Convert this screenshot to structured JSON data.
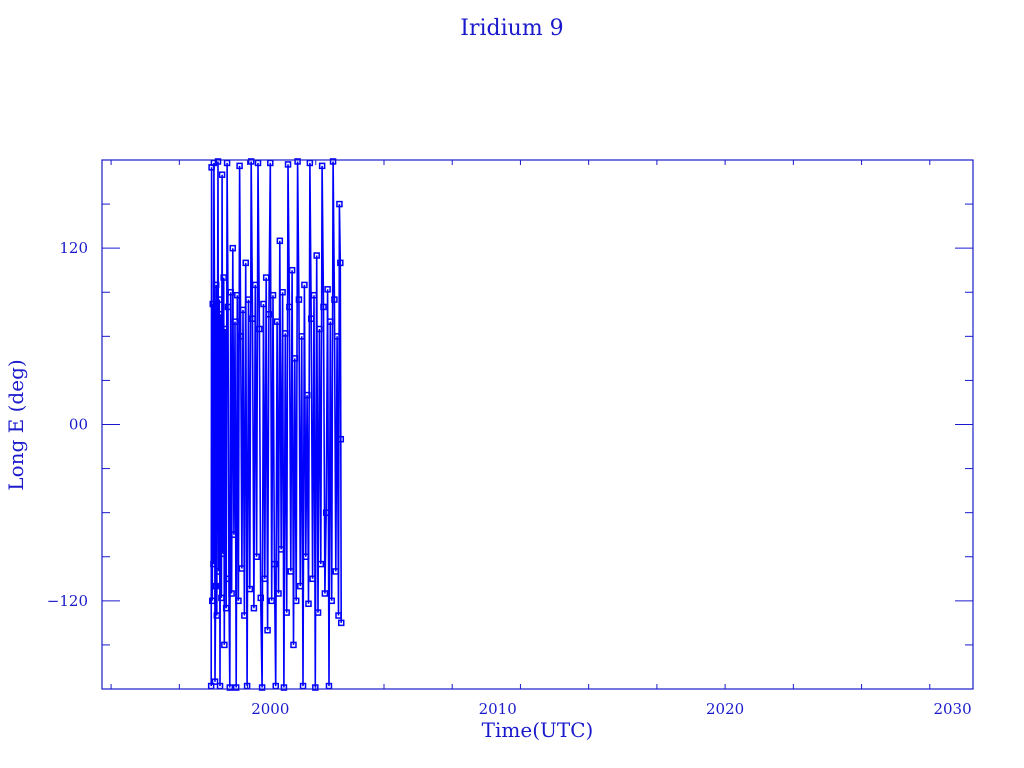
{
  "chart_data": {
    "type": "line",
    "title": "Iridium 9",
    "xlabel": "Time(UTC)",
    "ylabel": "Long E (deg)",
    "xlim": [
      1992.6,
      2030.9
    ],
    "ylim": [
      -180,
      180
    ],
    "xticks": [
      2000,
      2010,
      2020,
      2030
    ],
    "xtick_labels": [
      "2000",
      "2010",
      "2020",
      "2030"
    ],
    "yticks": [
      120,
      0,
      -120
    ],
    "ytick_labels": [
      "120",
      "00",
      "-120"
    ],
    "grid": false,
    "markers": "square",
    "color": "#0000ff",
    "series": [
      {
        "points": [
          [
            1997.4,
            -178
          ],
          [
            1997.42,
            175
          ],
          [
            1997.45,
            -120
          ],
          [
            1997.47,
            82
          ],
          [
            1997.5,
            -95
          ],
          [
            1997.52,
            178
          ],
          [
            1997.55,
            70
          ],
          [
            1997.57,
            -175
          ],
          [
            1997.6,
            -110
          ],
          [
            1997.62,
            95
          ],
          [
            1997.65,
            -130
          ],
          [
            1997.68,
            60
          ],
          [
            1997.7,
            179
          ],
          [
            1997.73,
            -100
          ],
          [
            1997.76,
            85
          ],
          [
            1997.79,
            -178
          ],
          [
            1997.82,
            75
          ],
          [
            1997.85,
            -118
          ],
          [
            1997.88,
            170
          ],
          [
            1997.91,
            -88
          ],
          [
            1997.95,
            100
          ],
          [
            1997.98,
            -150
          ],
          [
            1998.02,
            65
          ],
          [
            1998.06,
            -125
          ],
          [
            1998.1,
            178
          ],
          [
            1998.14,
            80
          ],
          [
            1998.18,
            -105
          ],
          [
            1998.22,
            -179
          ],
          [
            1998.26,
            90
          ],
          [
            1998.3,
            -115
          ],
          [
            1998.35,
            120
          ],
          [
            1998.4,
            -75
          ],
          [
            1998.45,
            70
          ],
          [
            1998.5,
            -179
          ],
          [
            1998.55,
            88
          ],
          [
            1998.6,
            -120
          ],
          [
            1998.65,
            176
          ],
          [
            1998.7,
            60
          ],
          [
            1998.75,
            -98
          ],
          [
            1998.8,
            78
          ],
          [
            1998.86,
            -130
          ],
          [
            1998.92,
            110
          ],
          [
            1998.98,
            -178
          ],
          [
            1999.04,
            85
          ],
          [
            1999.1,
            -112
          ],
          [
            1999.16,
            179
          ],
          [
            1999.22,
            72
          ],
          [
            1999.28,
            -125
          ],
          [
            1999.34,
            95
          ],
          [
            1999.4,
            -90
          ],
          [
            1999.46,
            178
          ],
          [
            1999.52,
            65
          ],
          [
            1999.58,
            -118
          ],
          [
            1999.64,
            -179
          ],
          [
            1999.7,
            82
          ],
          [
            1999.76,
            -105
          ],
          [
            1999.82,
            100
          ],
          [
            1999.88,
            -140
          ],
          [
            1999.94,
            75
          ],
          [
            2000.0,
            178
          ],
          [
            2000.06,
            -120
          ],
          [
            2000.12,
            88
          ],
          [
            2000.18,
            -95
          ],
          [
            2000.24,
            -178
          ],
          [
            2000.3,
            70
          ],
          [
            2000.36,
            -115
          ],
          [
            2000.42,
            125
          ],
          [
            2000.48,
            -85
          ],
          [
            2000.54,
            90
          ],
          [
            2000.6,
            -179
          ],
          [
            2000.66,
            62
          ],
          [
            2000.72,
            -128
          ],
          [
            2000.78,
            177
          ],
          [
            2000.84,
            80
          ],
          [
            2000.9,
            -100
          ],
          [
            2000.96,
            105
          ],
          [
            2001.02,
            -150
          ],
          [
            2001.08,
            45
          ],
          [
            2001.14,
            -120
          ],
          [
            2001.2,
            179
          ],
          [
            2001.26,
            85
          ],
          [
            2001.32,
            -110
          ],
          [
            2001.38,
            60
          ],
          [
            2001.44,
            -178
          ],
          [
            2001.5,
            95
          ],
          [
            2001.56,
            -90
          ],
          [
            2001.62,
            20
          ],
          [
            2001.68,
            -122
          ],
          [
            2001.74,
            178
          ],
          [
            2001.8,
            72
          ],
          [
            2001.86,
            -105
          ],
          [
            2001.92,
            88
          ],
          [
            2001.98,
            -179
          ],
          [
            2002.04,
            115
          ],
          [
            2002.1,
            -128
          ],
          [
            2002.16,
            65
          ],
          [
            2002.22,
            -95
          ],
          [
            2002.28,
            176
          ],
          [
            2002.34,
            80
          ],
          [
            2002.4,
            -115
          ],
          [
            2002.46,
            -60
          ],
          [
            2002.52,
            92
          ],
          [
            2002.58,
            -178
          ],
          [
            2002.64,
            70
          ],
          [
            2002.7,
            -120
          ],
          [
            2002.76,
            179
          ],
          [
            2002.82,
            85
          ],
          [
            2002.88,
            -100
          ],
          [
            2002.94,
            60
          ],
          [
            2003.0,
            -130
          ],
          [
            2003.04,
            150
          ],
          [
            2003.08,
            110
          ],
          [
            2003.1,
            -10
          ],
          [
            2003.12,
            -135
          ]
        ]
      }
    ]
  }
}
